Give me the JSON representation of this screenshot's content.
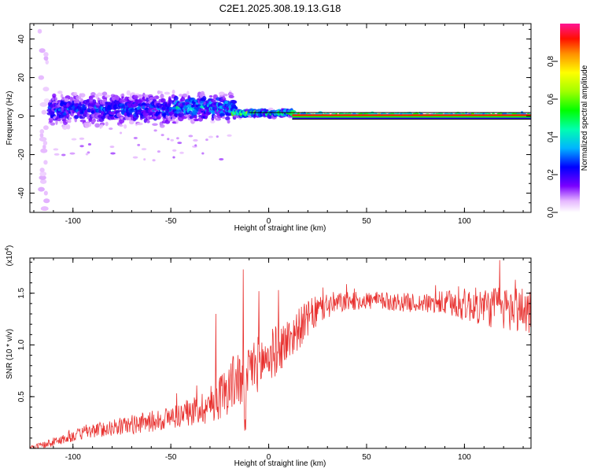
{
  "title": "C2E1.2025.308.19.13.G18",
  "chart_data": [
    {
      "type": "heatmap",
      "name": "spectrogram",
      "xlabel": "Height of straight line (km)",
      "ylabel": "Frequency (Hz)",
      "xlim": [
        -122,
        134
      ],
      "ylim": [
        -50,
        48
      ],
      "xticks": [
        -100,
        -50,
        0,
        50,
        100
      ],
      "xtick_labels": [
        "-100",
        "-50",
        "0",
        "50",
        "100"
      ],
      "yticks": [
        -40,
        -20,
        0,
        20,
        40
      ],
      "ytick_labels": [
        "-40",
        "-20",
        "0",
        "20",
        "40"
      ],
      "colorbar": {
        "label": "Normalized spectral amplitude",
        "range": [
          0,
          1
        ],
        "ticks": [
          0.0,
          0.2,
          0.4,
          0.6,
          0.8
        ],
        "tick_labels": [
          "0.0",
          "0.2",
          "0.4",
          "0.6",
          "0.8"
        ]
      },
      "bands": [
        {
          "x_start": -112,
          "x_end": -48,
          "freq_center": 3.5,
          "freq_spread": 7,
          "amplitude": 0.3
        },
        {
          "x_start": -48,
          "x_end": -18,
          "freq_center": 4.5,
          "freq_spread": 6,
          "amplitude": 0.4
        },
        {
          "x_start": -18,
          "x_end": 12,
          "freq_center": 1.5,
          "freq_spread": 1.5,
          "amplitude": 0.6
        },
        {
          "x_start": 12,
          "x_end": 134,
          "freq_center": 0.5,
          "freq_spread": 0.6,
          "amplitude": 0.95
        }
      ]
    },
    {
      "type": "line",
      "name": "snr",
      "xlabel": "Height of straight line (km)",
      "ylabel": "SNR (10 * v/v)",
      "scale_label": "(x10",
      "scale_exponent": "4",
      "xlim": [
        -122,
        134
      ],
      "ylim": [
        0,
        18400
      ],
      "xticks": [
        -100,
        -50,
        0,
        50,
        100
      ],
      "xtick_labels": [
        "-100",
        "-50",
        "0",
        "50",
        "100"
      ],
      "yticks": [
        5000,
        10000,
        15000
      ],
      "ytick_labels": [
        "0.5",
        "1.0",
        "1.5"
      ],
      "color": "#e8312f",
      "envelope": {
        "x": [
          -122,
          -115,
          -110,
          -100,
          -90,
          -80,
          -70,
          -60,
          -50,
          -40,
          -30,
          -25,
          -20,
          -15,
          -12,
          -10,
          -5,
          0,
          5,
          10,
          15,
          20,
          25,
          30,
          40,
          50,
          60,
          70,
          80,
          90,
          100,
          110,
          120,
          134
        ],
        "y": [
          0,
          300,
          600,
          1200,
          1700,
          2000,
          2300,
          2600,
          3000,
          3500,
          4200,
          5000,
          6000,
          7000,
          3500,
          7800,
          8200,
          8900,
          9600,
          10500,
          11500,
          12500,
          13300,
          13800,
          14200,
          14300,
          14200,
          14100,
          14000,
          14000,
          13900,
          13700,
          13500,
          13400
        ]
      },
      "noise": {
        "x": [
          -122,
          -80,
          -40,
          -25,
          -15,
          -10,
          0,
          20,
          40,
          80,
          100,
          120,
          134
        ],
        "amplitude": [
          300,
          800,
          1300,
          2200,
          3000,
          2800,
          2600,
          1800,
          900,
          900,
          1600,
          2200,
          2400
        ]
      },
      "peaks": [
        {
          "x": -27,
          "y": 13000
        },
        {
          "x": -13,
          "y": 17300
        },
        {
          "x": -5,
          "y": 15200
        },
        {
          "x": 5,
          "y": 15300
        },
        {
          "x": 118,
          "y": 18200
        }
      ]
    }
  ]
}
